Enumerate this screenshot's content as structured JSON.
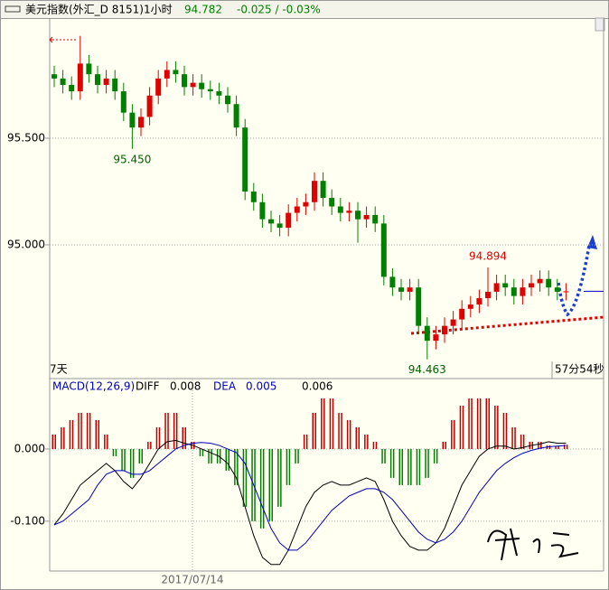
{
  "chart_data": [
    {
      "type": "candlestick",
      "title": "美元指数(外汇_D 8151)1小时",
      "last_price": 94.782,
      "change": "-0.025 / -0.03%",
      "period_label": "7天",
      "countdown": "57分54秒",
      "up_color": "#e00000",
      "down_color": "#008000",
      "ylim": [
        94.377,
        96.055
      ],
      "yticks": [
        {
          "value": 95.5,
          "label": "95.500"
        },
        {
          "value": 95,
          "label": "95.000"
        }
      ],
      "grid": true,
      "open": [
        95.8,
        95.78,
        95.75,
        95.72,
        95.85,
        95.8,
        95.75,
        95.78,
        95.72,
        95.62,
        95.55,
        95.6,
        95.7,
        95.78,
        95.82,
        95.8,
        95.74,
        95.76,
        95.73,
        95.72,
        95.7,
        95.66,
        95.55,
        95.25,
        95.2,
        95.12,
        95.1,
        95.08,
        95.15,
        95.18,
        95.2,
        95.3,
        95.22,
        95.18,
        95.15,
        95.16,
        95.12,
        95.14,
        95.1,
        94.85,
        94.8,
        94.78,
        94.8,
        94.62,
        94.55,
        94.58,
        94.62,
        94.65,
        94.7,
        94.72,
        94.75,
        94.78,
        94.82,
        94.8,
        94.76,
        94.8,
        94.82,
        94.84,
        94.8,
        94.78
      ],
      "high": [
        95.84,
        95.82,
        95.79,
        95.98,
        95.89,
        95.84,
        95.82,
        95.82,
        95.76,
        95.66,
        95.64,
        95.74,
        95.82,
        95.86,
        95.86,
        95.84,
        95.8,
        95.8,
        95.77,
        95.76,
        95.74,
        95.7,
        95.59,
        95.29,
        95.24,
        95.16,
        95.14,
        95.19,
        95.22,
        95.24,
        95.34,
        95.34,
        95.26,
        95.22,
        95.2,
        95.2,
        95.18,
        95.18,
        95.14,
        94.89,
        94.84,
        94.84,
        94.84,
        94.66,
        94.62,
        94.66,
        94.69,
        94.74,
        94.76,
        94.79,
        94.894,
        94.86,
        94.86,
        94.84,
        94.84,
        94.86,
        94.88,
        94.88,
        94.84,
        94.82
      ],
      "low": [
        95.74,
        95.71,
        95.68,
        95.68,
        95.76,
        95.71,
        95.71,
        95.68,
        95.58,
        95.45,
        95.51,
        95.56,
        95.66,
        95.74,
        95.76,
        95.7,
        95.7,
        95.69,
        95.68,
        95.66,
        95.62,
        95.51,
        95.21,
        95.16,
        95.08,
        95.06,
        95.04,
        95.04,
        95.11,
        95.14,
        95.16,
        95.18,
        95.14,
        95.11,
        95.11,
        95.01,
        95.08,
        95.06,
        94.81,
        94.76,
        94.74,
        94.74,
        94.58,
        94.463,
        94.51,
        94.54,
        94.58,
        94.61,
        94.66,
        94.68,
        94.71,
        94.74,
        94.76,
        94.72,
        94.72,
        94.76,
        94.78,
        94.76,
        94.74,
        94.74
      ],
      "close": [
        95.78,
        95.75,
        95.72,
        95.85,
        95.8,
        95.75,
        95.78,
        95.72,
        95.62,
        95.55,
        95.6,
        95.7,
        95.78,
        95.82,
        95.8,
        95.74,
        95.76,
        95.73,
        95.72,
        95.7,
        95.66,
        95.55,
        95.25,
        95.2,
        95.12,
        95.1,
        95.08,
        95.15,
        95.18,
        95.2,
        95.3,
        95.22,
        95.18,
        95.15,
        95.16,
        95.12,
        95.14,
        95.1,
        94.85,
        94.8,
        94.78,
        94.8,
        94.62,
        94.55,
        94.58,
        94.62,
        94.65,
        94.7,
        94.72,
        94.75,
        94.78,
        94.82,
        94.8,
        94.76,
        94.8,
        94.82,
        94.84,
        94.8,
        94.78,
        94.782
      ],
      "annotations": [
        {
          "value": 95.45,
          "label": "95.450",
          "color": "#006400"
        },
        {
          "value": 94.894,
          "label": "94.894",
          "color": "#e00000"
        },
        {
          "value": 94.463,
          "label": "94.463",
          "color": "#006400"
        }
      ]
    },
    {
      "type": "macd",
      "title": "MACD(12,26,9)",
      "date_label": "2017/07/14",
      "ylim": [
        -0.169,
        0.075
      ],
      "yticks": [
        {
          "value": 0,
          "label": "0.000"
        },
        {
          "value": -0.1,
          "label": "-0.100"
        }
      ],
      "grid": true,
      "histogram": {
        "current": 0.006,
        "up_color": "#c00000",
        "down_color": "#008000",
        "values": [
          0.02,
          0.03,
          0.04,
          0.05,
          0.05,
          0.04,
          0.02,
          -0.01,
          -0.03,
          -0.04,
          -0.02,
          0.01,
          0.03,
          0.05,
          0.05,
          0.03,
          0.01,
          -0.01,
          -0.02,
          -0.02,
          -0.03,
          -0.05,
          -0.08,
          -0.1,
          -0.11,
          -0.1,
          -0.08,
          -0.05,
          -0.02,
          0.02,
          0.05,
          0.07,
          0.07,
          0.05,
          0.04,
          0.03,
          0.02,
          0.01,
          -0.02,
          -0.04,
          -0.05,
          -0.05,
          -0.05,
          -0.04,
          -0.02,
          0.01,
          0.04,
          0.06,
          0.07,
          0.07,
          0.07,
          0.06,
          0.05,
          0.03,
          0.02,
          0.01,
          0.01,
          0.005,
          0.004,
          0.006
        ]
      },
      "series": [
        {
          "name": "DIFF",
          "color": "#000000",
          "current": 0.008,
          "values": [
            -0.105,
            -0.09,
            -0.07,
            -0.05,
            -0.04,
            -0.03,
            -0.02,
            -0.03,
            -0.045,
            -0.055,
            -0.04,
            -0.02,
            0.0,
            0.01,
            0.012,
            0.008,
            0.005,
            0.0,
            -0.005,
            -0.01,
            -0.02,
            -0.04,
            -0.08,
            -0.12,
            -0.15,
            -0.16,
            -0.16,
            -0.14,
            -0.11,
            -0.08,
            -0.06,
            -0.05,
            -0.045,
            -0.05,
            -0.05,
            -0.045,
            -0.04,
            -0.045,
            -0.07,
            -0.1,
            -0.12,
            -0.135,
            -0.14,
            -0.14,
            -0.13,
            -0.11,
            -0.08,
            -0.05,
            -0.03,
            -0.01,
            0.0,
            0.004,
            0.004,
            0.0,
            0.002,
            0.005,
            0.007,
            0.01,
            0.008,
            0.008
          ]
        },
        {
          "name": "DEA",
          "color": "#0000c0",
          "current": 0.005,
          "values": [
            -0.105,
            -0.1,
            -0.09,
            -0.08,
            -0.07,
            -0.05,
            -0.035,
            -0.03,
            -0.03,
            -0.035,
            -0.035,
            -0.03,
            -0.02,
            -0.01,
            0.0,
            0.005,
            0.008,
            0.009,
            0.008,
            0.005,
            0.0,
            -0.005,
            -0.02,
            -0.05,
            -0.08,
            -0.11,
            -0.13,
            -0.14,
            -0.14,
            -0.13,
            -0.115,
            -0.1,
            -0.085,
            -0.075,
            -0.065,
            -0.06,
            -0.055,
            -0.055,
            -0.06,
            -0.07,
            -0.085,
            -0.1,
            -0.115,
            -0.125,
            -0.13,
            -0.125,
            -0.115,
            -0.1,
            -0.08,
            -0.06,
            -0.045,
            -0.03,
            -0.02,
            -0.012,
            -0.006,
            -0.002,
            0.001,
            0.003,
            0.004,
            0.005
          ]
        }
      ]
    }
  ]
}
